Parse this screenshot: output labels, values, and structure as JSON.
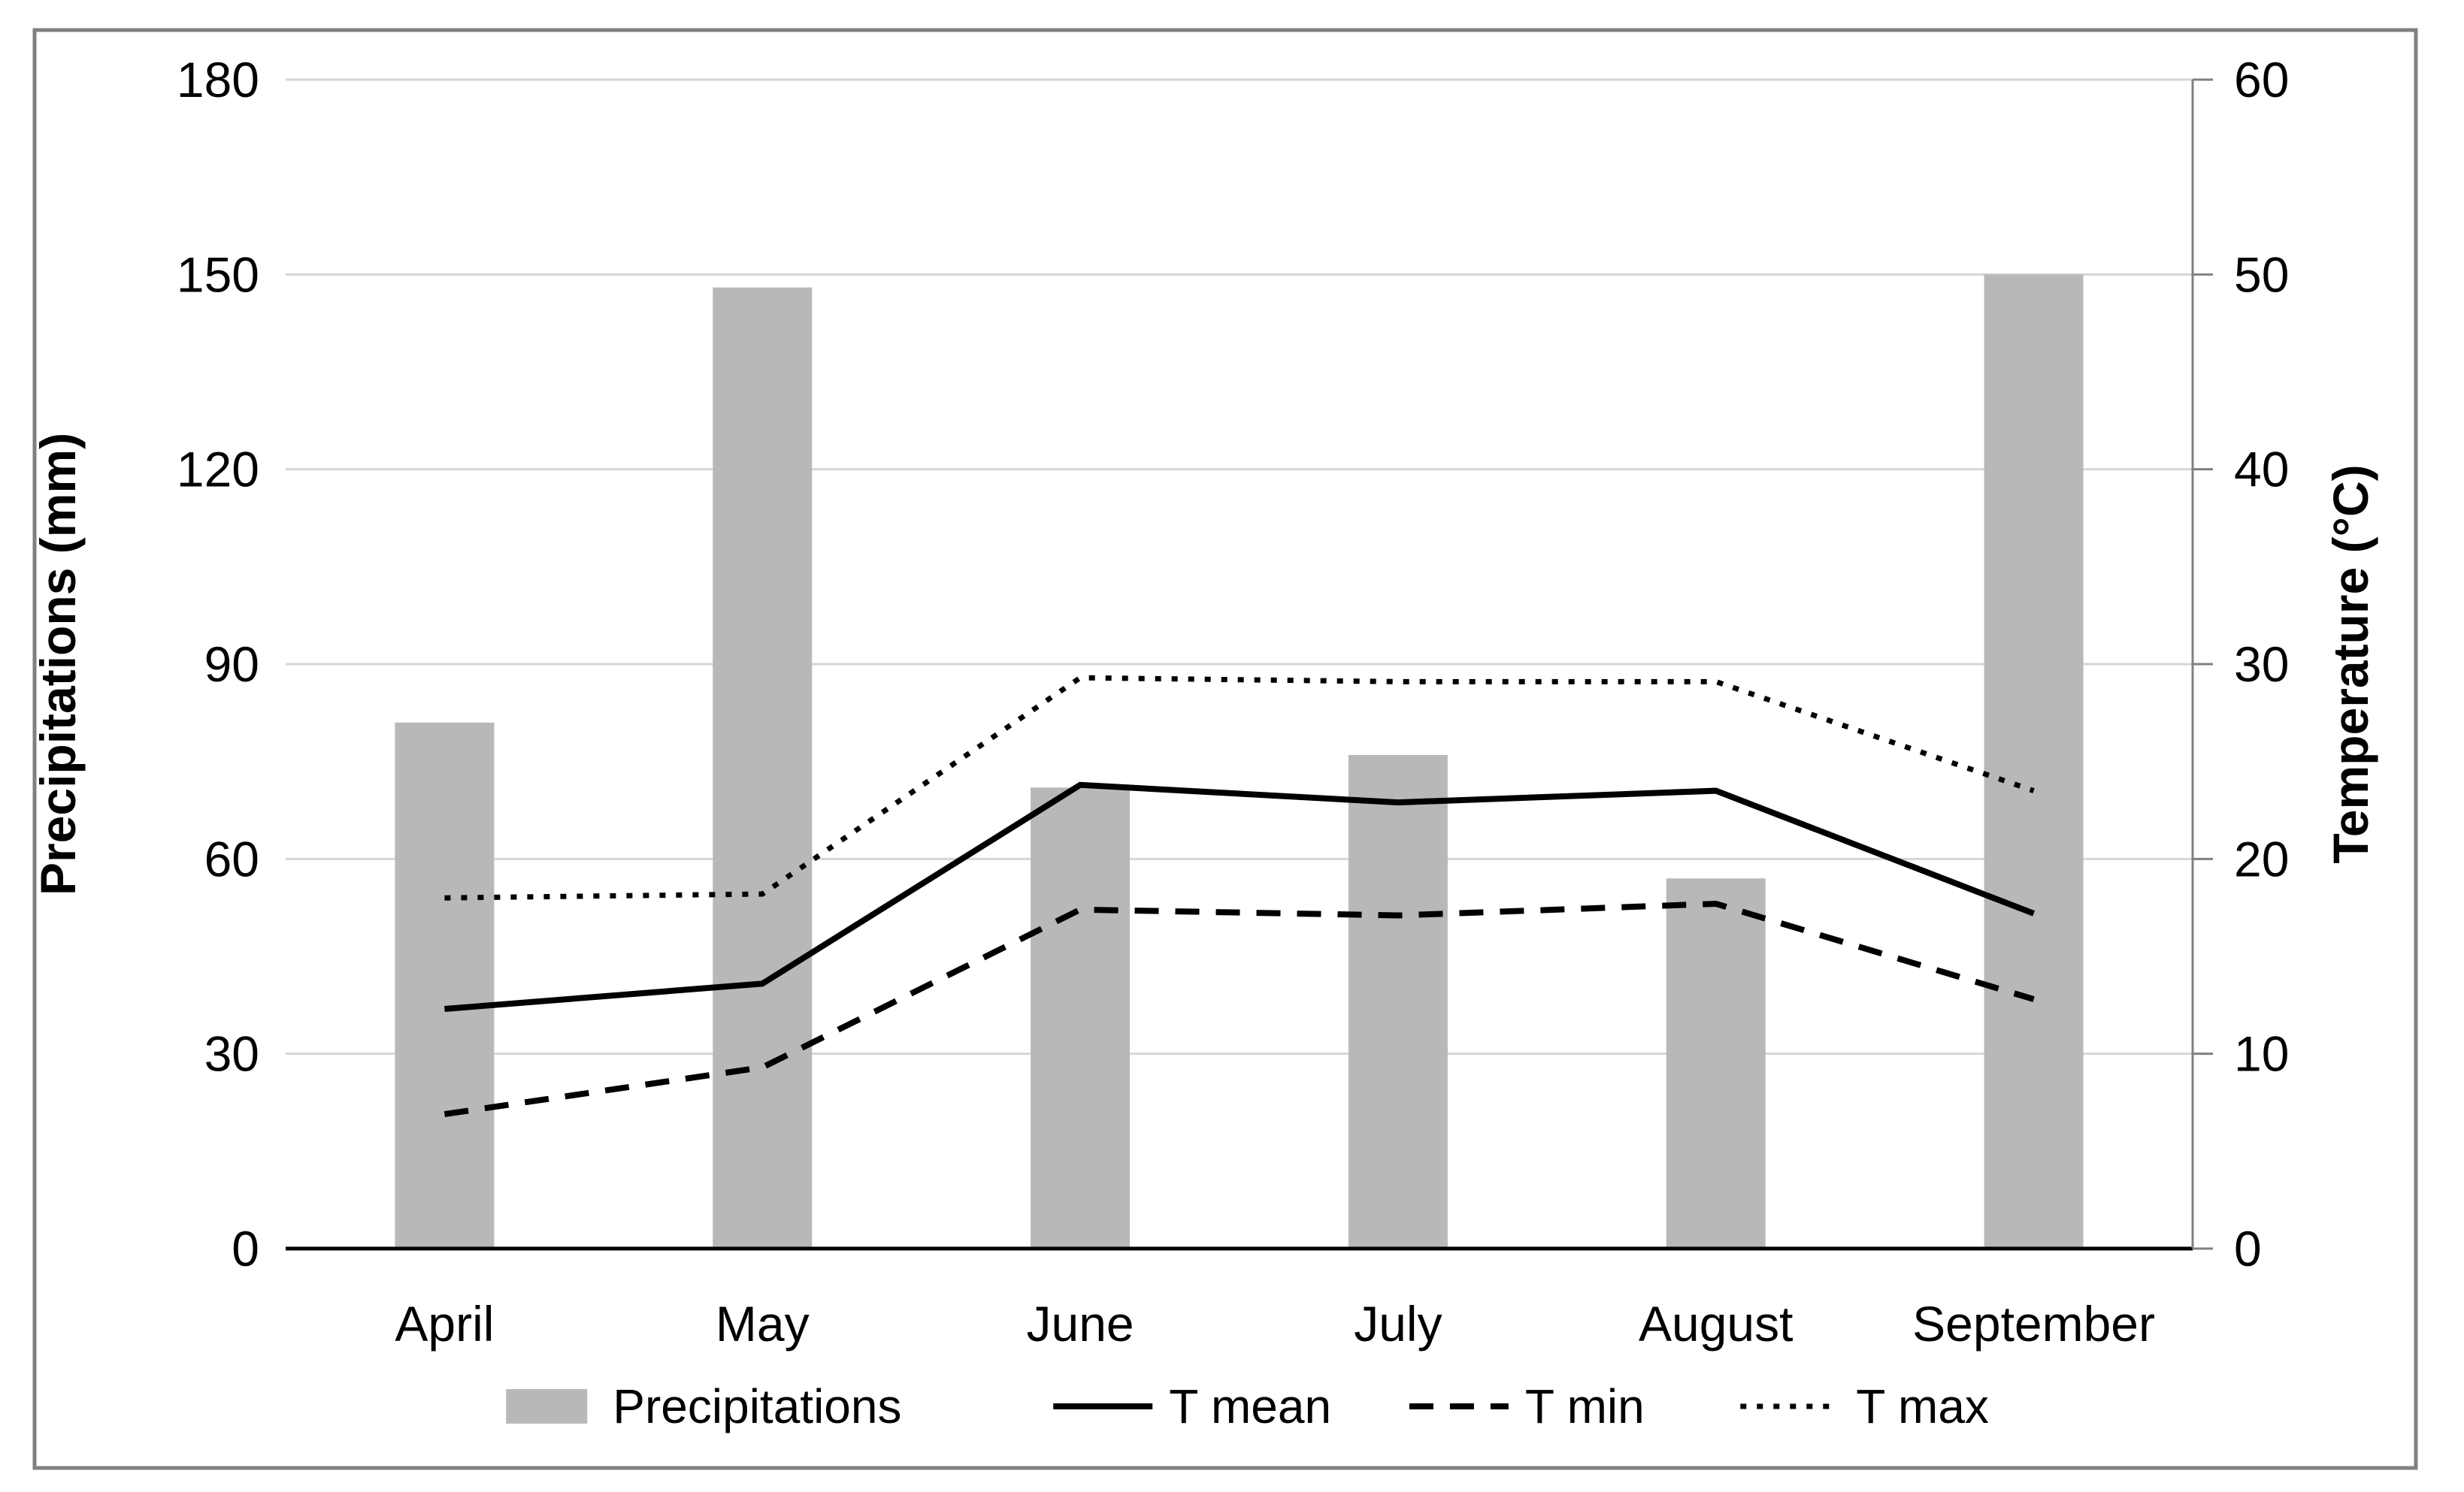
{
  "chart_data": {
    "type": "combo-bar-line",
    "title": "",
    "categories": [
      "April",
      "May",
      "June",
      "July",
      "August",
      "September"
    ],
    "series": [
      {
        "name": "Precipitations",
        "type": "bar",
        "style": "bar",
        "axis": "left",
        "unit": "mm",
        "values": [
          81,
          148,
          71,
          76,
          57,
          150
        ]
      },
      {
        "name": "T mean",
        "type": "line",
        "style": "solid",
        "axis": "right",
        "unit": "°C",
        "values": [
          12.3,
          13.6,
          23.8,
          22.9,
          23.5,
          17.2
        ]
      },
      {
        "name": "T min",
        "type": "line",
        "style": "dashed",
        "axis": "right",
        "unit": "°C",
        "values": [
          6.9,
          9.3,
          17.4,
          17.1,
          17.7,
          12.8
        ]
      },
      {
        "name": "T max",
        "type": "line",
        "style": "dotted",
        "axis": "right",
        "unit": "°C",
        "values": [
          18.0,
          18.2,
          29.3,
          29.1,
          29.1,
          23.5
        ]
      }
    ],
    "left_axis": {
      "title": "Precipitations (mm)",
      "min": 0,
      "max": 180,
      "tick_step": 30,
      "tick_labels": [
        "180",
        "150",
        "120",
        "90",
        "60",
        "30",
        "0"
      ]
    },
    "right_axis": {
      "title": "Temperature (°C)",
      "min": 0,
      "max": 60,
      "tick_step": 10,
      "tick_labels": [
        "60",
        "50",
        "40",
        "30",
        "20",
        "10",
        "0"
      ]
    },
    "legend": {
      "position": "bottom",
      "items": [
        "Precipitations",
        "T mean",
        "T min",
        "T max"
      ]
    },
    "grid": "horizontal-on"
  },
  "colors": {
    "background": "#ffffff",
    "frame_border": "#808080",
    "gridline": "#d6d6d6",
    "bar_fill": "#b8b8b8",
    "primary_axis_line": "#000000",
    "secondary_axis_line": "#808080",
    "line_color": "#000000",
    "text": "#000000"
  }
}
